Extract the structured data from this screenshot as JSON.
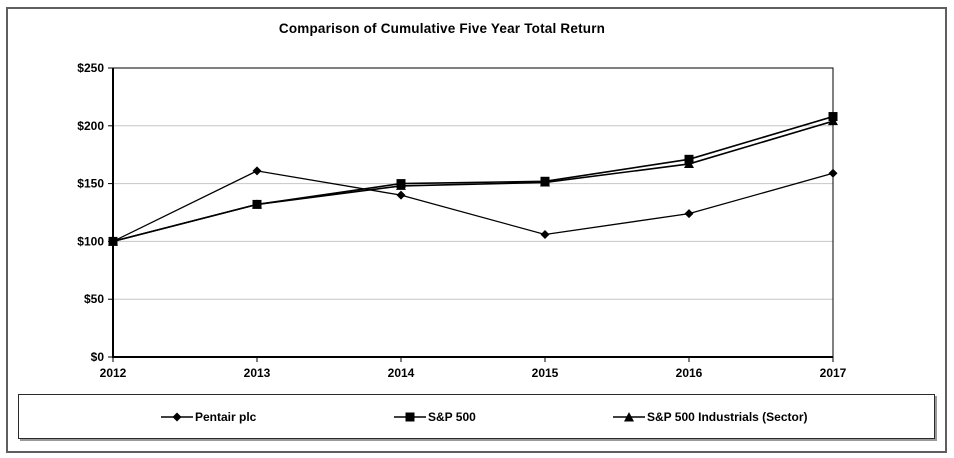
{
  "chart_data": {
    "type": "line",
    "title": "Comparison of Cumulative Five Year Total Return",
    "categories": [
      "2012",
      "2013",
      "2014",
      "2015",
      "2016",
      "2017"
    ],
    "series": [
      {
        "name": "Pentair plc",
        "marker": "diamond",
        "color": "#000000",
        "values": [
          100,
          161,
          140,
          106,
          124,
          159
        ]
      },
      {
        "name": "S&P 500",
        "marker": "square",
        "color": "#000000",
        "values": [
          100,
          132,
          150,
          152,
          171,
          208
        ]
      },
      {
        "name": "S&P 500 Industrials (Sector)",
        "marker": "triangle",
        "color": "#000000",
        "values": [
          100,
          132,
          148,
          151,
          167,
          204
        ]
      }
    ],
    "ylim": [
      0,
      250
    ],
    "y_tick_step": 50,
    "y_tick_labels": [
      "$0",
      "$50",
      "$100",
      "$150",
      "$200",
      "$250"
    ],
    "xlabel": "",
    "ylabel": "",
    "grid": true,
    "gridline_color": "#c6c6c6",
    "axis_color": "#000000",
    "frame_color": "#5f5f5f",
    "legend_position": "bottom",
    "z_order": [
      0,
      2,
      1
    ]
  }
}
